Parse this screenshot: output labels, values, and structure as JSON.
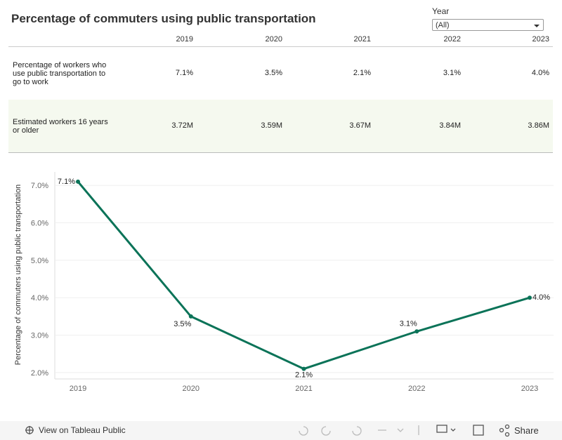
{
  "title": "Percentage of commuters using public transportation",
  "filter": {
    "label": "Year",
    "value": "(All)"
  },
  "table": {
    "columns": [
      "2019",
      "2020",
      "2021",
      "2022",
      "2023"
    ],
    "rows": [
      {
        "label": "Percentage of workers who use public transportation to go to work",
        "cells": [
          "7.1%",
          "3.5%",
          "2.1%",
          "3.1%",
          "4.0%"
        ]
      },
      {
        "label": "Estimated workers 16 years or older",
        "cells": [
          "3.72M",
          "3.59M",
          "3.67M",
          "3.84M",
          "3.86M"
        ]
      }
    ]
  },
  "chart_data": {
    "type": "line",
    "y_label": "Percentage of commuters using public transportation",
    "categories": [
      "2019",
      "2020",
      "2021",
      "2022",
      "2023"
    ],
    "values": [
      7.1,
      3.5,
      2.1,
      3.1,
      4.0
    ],
    "value_labels": [
      "7.1%",
      "3.5%",
      "2.1%",
      "3.1%",
      "4.0%"
    ],
    "color": "#0b7358",
    "ylim": [
      1.83,
      7.36
    ],
    "yticks": [
      {
        "value": 2,
        "label": "2.0%"
      },
      {
        "value": 3,
        "label": "3.0%"
      },
      {
        "value": 4,
        "label": "4.0%"
      },
      {
        "value": 5,
        "label": "5.0%"
      },
      {
        "value": 6,
        "label": "6.0%"
      },
      {
        "value": 7,
        "label": "7.0%"
      }
    ],
    "grid": true
  },
  "footer": {
    "link": "View on Tableau Public",
    "share": "Share"
  }
}
